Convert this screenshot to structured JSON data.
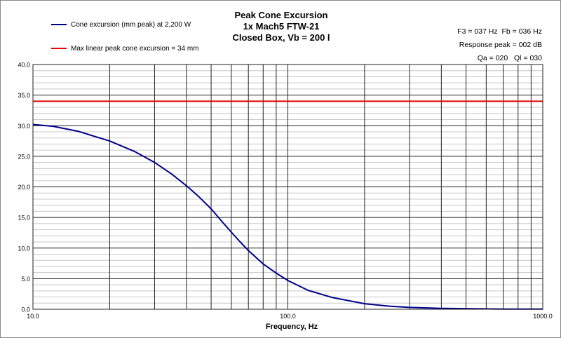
{
  "chart_data": {
    "type": "line",
    "title": [
      "Peak Cone Excursion",
      "1x Mach5 FTW-21",
      "Closed Box, Vb = 200 l"
    ],
    "xlabel": "Frequency, Hz",
    "ylabel": "",
    "xscale": "log",
    "xlim": [
      10,
      1000
    ],
    "ylim": [
      0,
      40
    ],
    "grid": true,
    "legend_placement": "top-left",
    "x_tick_labels": [
      "10.0",
      "100.0",
      "1000.0"
    ],
    "y_tick_labels": [
      "0.0",
      "5.0",
      "10.0",
      "15.0",
      "20.0",
      "25.0",
      "30.0",
      "35.0",
      "40.0"
    ],
    "series": [
      {
        "name": "Cone excursion (mm peak) at 2,200 W",
        "color": "#00008b",
        "x": [
          10,
          12,
          15,
          20,
          25,
          30,
          35,
          40,
          45,
          50,
          55,
          60,
          65,
          70,
          80,
          90,
          100,
          120,
          150,
          200,
          250,
          300,
          400,
          500,
          700,
          1000
        ],
        "y": [
          30.2,
          29.9,
          29.1,
          27.5,
          25.8,
          24.0,
          22.1,
          20.2,
          18.3,
          16.4,
          14.4,
          12.6,
          11.0,
          9.6,
          7.4,
          5.9,
          4.7,
          3.1,
          1.9,
          0.9,
          0.5,
          0.3,
          0.15,
          0.1,
          0.04,
          0.02
        ]
      },
      {
        "name": "Max linear peak cone excursion = 34 mm",
        "color": "#e00000",
        "x": [
          10,
          1000
        ],
        "y": [
          34,
          34
        ]
      }
    ]
  },
  "info": {
    "f3": "F3 = 037  Hz",
    "fb": "Fb = 036  Hz",
    "response_peak": "Response peak = 002  dB",
    "qa": "Qa = 020",
    "ql": "Ql = 030"
  }
}
